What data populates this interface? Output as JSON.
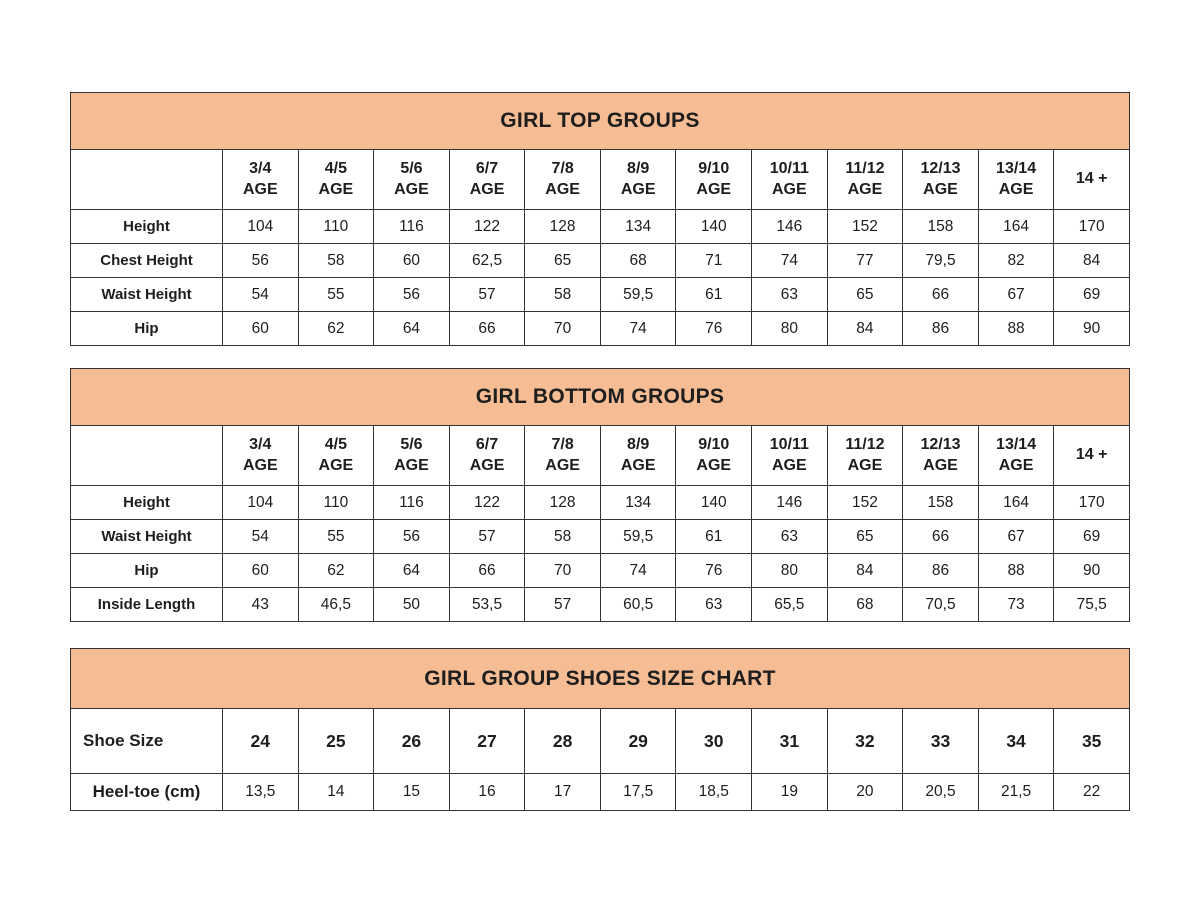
{
  "page": {
    "background": "#ffffff"
  },
  "colors": {
    "band": "#f6bd94",
    "border": "#333333",
    "text": "#1e1e1e",
    "background": "#ffffff"
  },
  "chart_data": [
    {
      "type": "table",
      "title": "GIRL TOP GROUPS",
      "corner_label": "",
      "columns": [
        "3/4\nAGE",
        "4/5\nAGE",
        "5/6\nAGE",
        "6/7\nAGE",
        "7/8\nAGE",
        "8/9\nAGE",
        "9/10\nAGE",
        "10/11\nAGE",
        "11/12\nAGE",
        "12/13\nAGE",
        "13/14\nAGE",
        "14 +"
      ],
      "rows": [
        {
          "label": "Height",
          "values": [
            "104",
            "110",
            "116",
            "122",
            "128",
            "134",
            "140",
            "146",
            "152",
            "158",
            "164",
            "170"
          ]
        },
        {
          "label": "Chest Height",
          "values": [
            "56",
            "58",
            "60",
            "62,5",
            "65",
            "68",
            "71",
            "74",
            "77",
            "79,5",
            "82",
            "84"
          ]
        },
        {
          "label": "Waist Height",
          "values": [
            "54",
            "55",
            "56",
            "57",
            "58",
            "59,5",
            "61",
            "63",
            "65",
            "66",
            "67",
            "69"
          ]
        },
        {
          "label": "Hip",
          "values": [
            "60",
            "62",
            "64",
            "66",
            "70",
            "74",
            "76",
            "80",
            "84",
            "86",
            "88",
            "90"
          ]
        }
      ]
    },
    {
      "type": "table",
      "title": "GIRL BOTTOM GROUPS",
      "corner_label": "",
      "columns": [
        "3/4\nAGE",
        "4/5\nAGE",
        "5/6\nAGE",
        "6/7\nAGE",
        "7/8\nAGE",
        "8/9\nAGE",
        "9/10\nAGE",
        "10/11\nAGE",
        "11/12\nAGE",
        "12/13\nAGE",
        "13/14\nAGE",
        "14 +"
      ],
      "rows": [
        {
          "label": "Height",
          "values": [
            "104",
            "110",
            "116",
            "122",
            "128",
            "134",
            "140",
            "146",
            "152",
            "158",
            "164",
            "170"
          ]
        },
        {
          "label": "Waist Height",
          "values": [
            "54",
            "55",
            "56",
            "57",
            "58",
            "59,5",
            "61",
            "63",
            "65",
            "66",
            "67",
            "69"
          ]
        },
        {
          "label": "Hip",
          "values": [
            "60",
            "62",
            "64",
            "66",
            "70",
            "74",
            "76",
            "80",
            "84",
            "86",
            "88",
            "90"
          ]
        },
        {
          "label": "Inside Length",
          "values": [
            "43",
            "46,5",
            "50",
            "53,5",
            "57",
            "60,5",
            "63",
            "65,5",
            "68",
            "70,5",
            "73",
            "75,5"
          ]
        }
      ]
    },
    {
      "type": "table",
      "title": "GIRL GROUP SHOES SIZE CHART",
      "corner_label": "Shoe Size",
      "columns": [
        "24",
        "25",
        "26",
        "27",
        "28",
        "29",
        "30",
        "31",
        "32",
        "33",
        "34",
        "35"
      ],
      "rows": [
        {
          "label": "Heel-toe (cm)",
          "values": [
            "13,5",
            "14",
            "15",
            "16",
            "17",
            "17,5",
            "18,5",
            "19",
            "20",
            "20,5",
            "21,5",
            "22"
          ]
        }
      ]
    }
  ]
}
